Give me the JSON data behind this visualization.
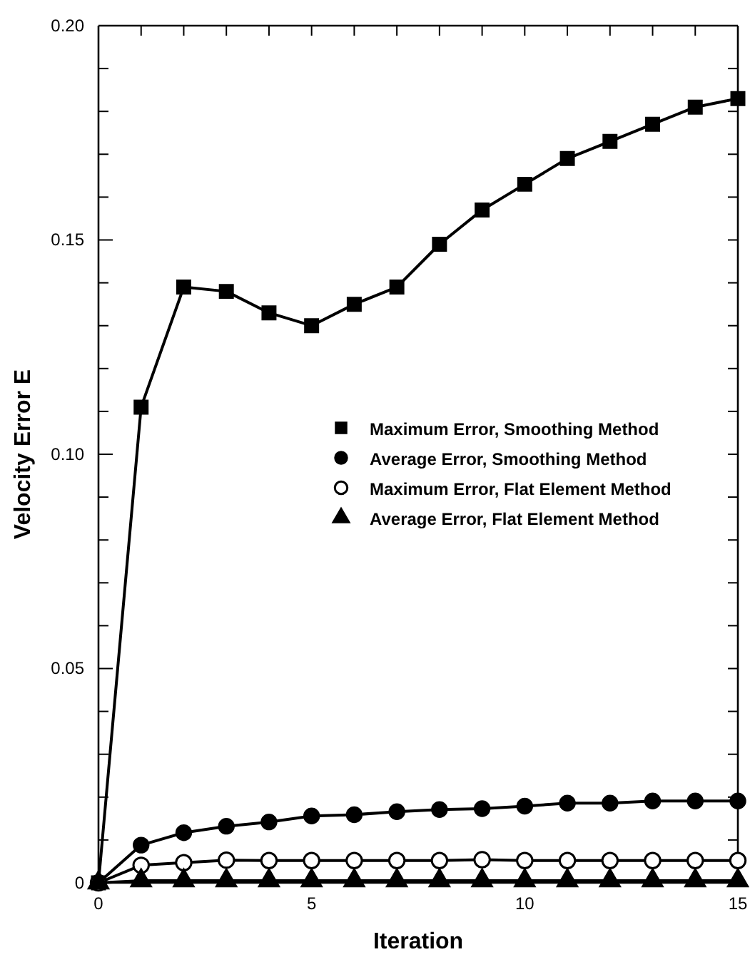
{
  "chart_data": {
    "type": "line",
    "xlabel": "Iteration",
    "ylabel": "Velocity Error  E",
    "x": [
      0,
      1,
      2,
      3,
      4,
      5,
      6,
      7,
      8,
      9,
      10,
      11,
      12,
      13,
      14,
      15
    ],
    "xlim": [
      0,
      15
    ],
    "xticks": [
      0,
      {
        "value": 1,
        "label": null
      },
      {
        "value": 2,
        "label": null
      },
      {
        "value": 3,
        "label": null
      },
      {
        "value": 4,
        "label": null
      },
      5,
      {
        "value": 6,
        "label": null
      },
      {
        "value": 7,
        "label": null
      },
      {
        "value": 8,
        "label": null
      },
      {
        "value": 9,
        "label": null
      },
      10,
      {
        "value": 11,
        "label": null
      },
      {
        "value": 12,
        "label": null
      },
      {
        "value": 13,
        "label": null
      },
      {
        "value": 14,
        "label": null
      },
      15
    ],
    "ylim": [
      0,
      0.2
    ],
    "yticks": [
      0,
      {
        "value": 0.01,
        "label": null
      },
      {
        "value": 0.02,
        "label": null
      },
      {
        "value": 0.03,
        "label": null
      },
      {
        "value": 0.04,
        "label": null
      },
      0.05,
      {
        "value": 0.06,
        "label": null
      },
      {
        "value": 0.07,
        "label": null
      },
      {
        "value": 0.08,
        "label": null
      },
      {
        "value": 0.09,
        "label": null
      },
      {
        "value": 0.1,
        "label": "0.10"
      },
      {
        "value": 0.11,
        "label": null
      },
      {
        "value": 0.12,
        "label": null
      },
      {
        "value": 0.13,
        "label": null
      },
      {
        "value": 0.14,
        "label": null
      },
      0.15,
      {
        "value": 0.16,
        "label": null
      },
      {
        "value": 0.17,
        "label": null
      },
      {
        "value": 0.18,
        "label": null
      },
      {
        "value": 0.19,
        "label": null
      },
      {
        "value": 0.2,
        "label": "0.20"
      }
    ],
    "grid": false,
    "legend": "right",
    "line_style": "solid",
    "series": [
      {
        "name": "Maximum Error, Smoothing Method",
        "color": "#000000",
        "marker": "square",
        "values": [
          0,
          0.111,
          0.139,
          0.138,
          0.133,
          0.13,
          0.135,
          0.139,
          0.149,
          0.157,
          0.163,
          0.169,
          0.173,
          0.177,
          0.181,
          0.183
        ]
      },
      {
        "name": "Average Error, Smoothing Method",
        "color": "#000000",
        "marker": "circle",
        "values": [
          0,
          0.0088,
          0.0117,
          0.0132,
          0.0142,
          0.0156,
          0.0159,
          0.0166,
          0.0171,
          0.0173,
          0.0179,
          0.0186,
          0.0186,
          0.0191,
          0.0191,
          0.0191
        ]
      },
      {
        "name": "Maximum Error, Flat Element Method",
        "color": "#ffffff",
        "marker": "circle",
        "values": [
          0,
          0.0041,
          0.0047,
          0.0053,
          0.0052,
          0.0052,
          0.0052,
          0.0052,
          0.0052,
          0.0054,
          0.0052,
          0.0052,
          0.0052,
          0.0052,
          0.0052,
          0.0052
        ]
      },
      {
        "name": "Average Error, Flat Element Method",
        "color": "#000000",
        "marker": "triangle",
        "values": [
          0,
          0.0005,
          0.0005,
          0.0005,
          0.0005,
          0.0005,
          0.0005,
          0.0005,
          0.0005,
          0.0005,
          0.0005,
          0.0005,
          0.0005,
          0.0005,
          0.0005,
          0.0005
        ]
      }
    ]
  }
}
